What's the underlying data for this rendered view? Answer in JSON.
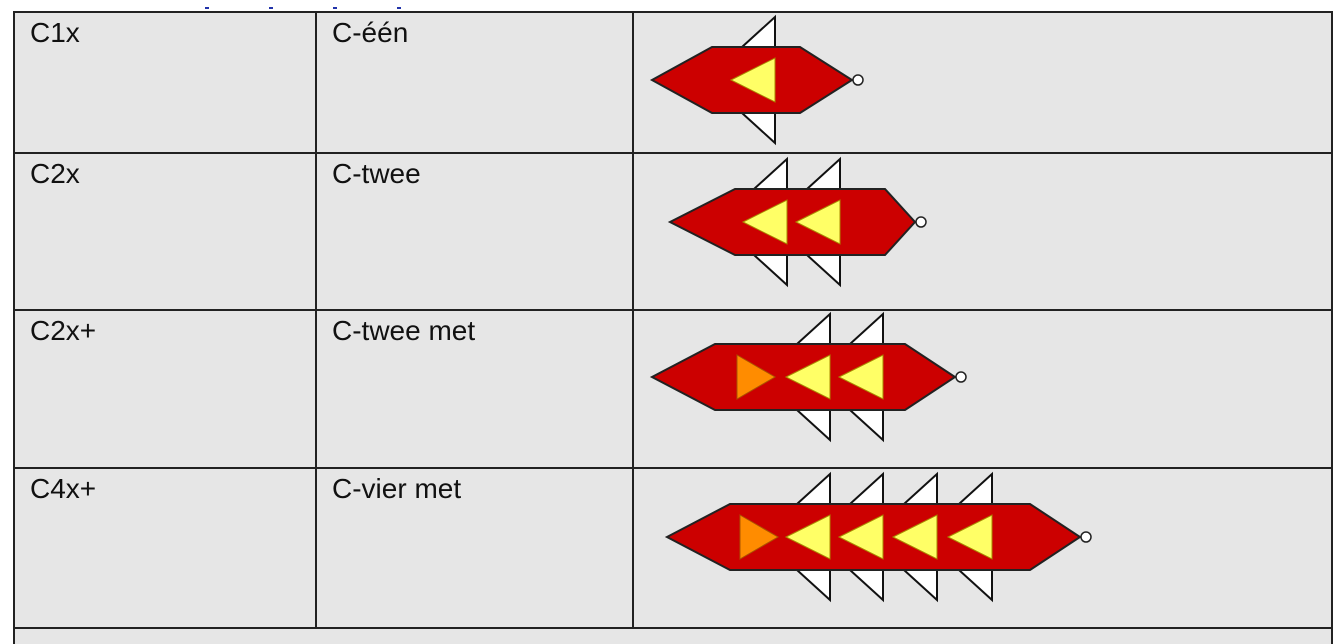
{
  "table": {
    "rows": [
      [
        "C1x",
        "C-één"
      ],
      [
        "C2x",
        "C-twee"
      ],
      [
        "C2x+",
        "C-twee met"
      ],
      [
        "C4x+",
        "C-vier met"
      ]
    ]
  }
}
